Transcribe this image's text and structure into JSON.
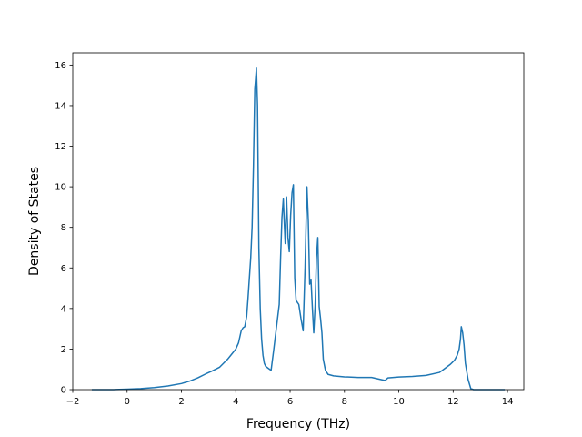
{
  "chart_data": {
    "type": "line",
    "title": "",
    "xlabel": "Frequency (THz)",
    "ylabel": "Density of States",
    "xlim": [
      -2,
      14.6
    ],
    "ylim": [
      0,
      16.6
    ],
    "xticks": [
      -2,
      0,
      2,
      4,
      6,
      8,
      10,
      12,
      14
    ],
    "yticks": [
      0,
      2,
      4,
      6,
      8,
      10,
      12,
      14,
      16
    ],
    "grid": false,
    "line_color": "#1f77b4",
    "series": [
      {
        "x": [
          -1.3,
          -1.0,
          -0.5,
          0.0,
          0.5,
          1.0,
          1.5,
          2.0,
          2.3,
          2.6,
          2.9,
          3.1,
          3.25,
          3.4,
          3.55,
          3.7,
          3.85,
          4.0,
          4.1,
          4.2,
          4.27,
          4.33,
          4.4,
          4.45,
          4.5,
          4.55,
          4.6,
          4.65,
          4.7,
          4.73,
          4.76,
          4.8,
          4.85,
          4.9,
          4.95,
          5.0,
          5.05,
          5.1,
          5.2,
          5.3,
          5.4,
          5.5,
          5.6,
          5.65,
          5.7,
          5.75,
          5.78,
          5.82,
          5.87,
          5.92,
          5.97,
          6.02,
          6.07,
          6.12,
          6.17,
          6.22,
          6.27,
          6.32,
          6.4,
          6.48,
          6.55,
          6.62,
          6.67,
          6.72,
          6.77,
          6.82,
          6.87,
          6.92,
          6.97,
          7.02,
          7.07,
          7.12,
          7.17,
          7.22,
          7.3,
          7.4,
          7.6,
          8.0,
          8.5,
          9.0,
          9.5,
          9.6,
          9.8,
          10.0,
          10.5,
          11.0,
          11.5,
          11.7,
          11.9,
          12.05,
          12.15,
          12.22,
          12.27,
          12.3,
          12.35,
          12.4,
          12.45,
          12.55,
          12.65,
          12.75,
          13.0,
          13.5,
          13.9
        ],
        "y": [
          0.0,
          0.0,
          0.0,
          0.02,
          0.05,
          0.1,
          0.18,
          0.3,
          0.42,
          0.58,
          0.78,
          0.9,
          1.0,
          1.1,
          1.3,
          1.5,
          1.75,
          2.0,
          2.3,
          2.9,
          3.05,
          3.1,
          3.6,
          4.5,
          5.5,
          6.5,
          8.0,
          11.0,
          14.8,
          15.3,
          15.85,
          14.0,
          7.0,
          4.0,
          2.5,
          1.7,
          1.3,
          1.15,
          1.05,
          0.95,
          2.0,
          3.1,
          4.2,
          6.5,
          8.5,
          9.4,
          8.4,
          7.2,
          9.5,
          7.5,
          6.8,
          8.6,
          9.7,
          10.1,
          5.5,
          4.4,
          4.3,
          4.2,
          3.5,
          2.9,
          6.0,
          10.0,
          8.3,
          5.2,
          5.4,
          4.0,
          2.8,
          4.1,
          6.5,
          7.5,
          4.1,
          3.5,
          2.8,
          1.5,
          0.95,
          0.75,
          0.68,
          0.63,
          0.6,
          0.6,
          0.45,
          0.58,
          0.6,
          0.62,
          0.65,
          0.7,
          0.85,
          1.05,
          1.25,
          1.45,
          1.7,
          2.0,
          2.5,
          3.1,
          2.8,
          2.2,
          1.3,
          0.5,
          0.05,
          0.0,
          0.0,
          0.0,
          0.0
        ]
      }
    ]
  }
}
